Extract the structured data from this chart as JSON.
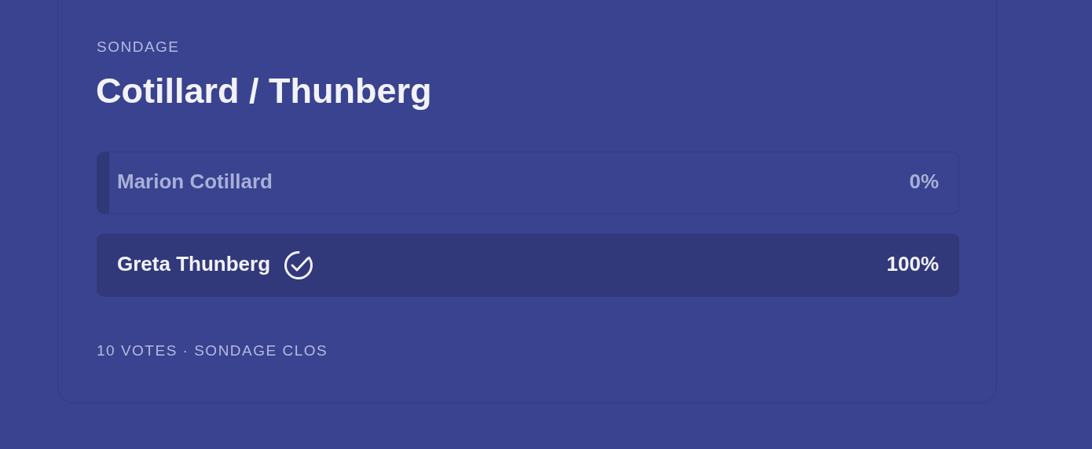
{
  "chart_data": {
    "type": "bar",
    "orientation": "horizontal",
    "subtitle": "SONDAGE",
    "title": "Cotillard / Thunberg",
    "categories": [
      "Marion Cotillard",
      "Greta Thunberg"
    ],
    "values": [
      0,
      100
    ],
    "value_labels": [
      "0%",
      "100%"
    ],
    "colors": [
      "#2f3878",
      "#31397a"
    ],
    "annotations": [
      "10 VOTES · SONDAGE CLOS"
    ]
  }
}
